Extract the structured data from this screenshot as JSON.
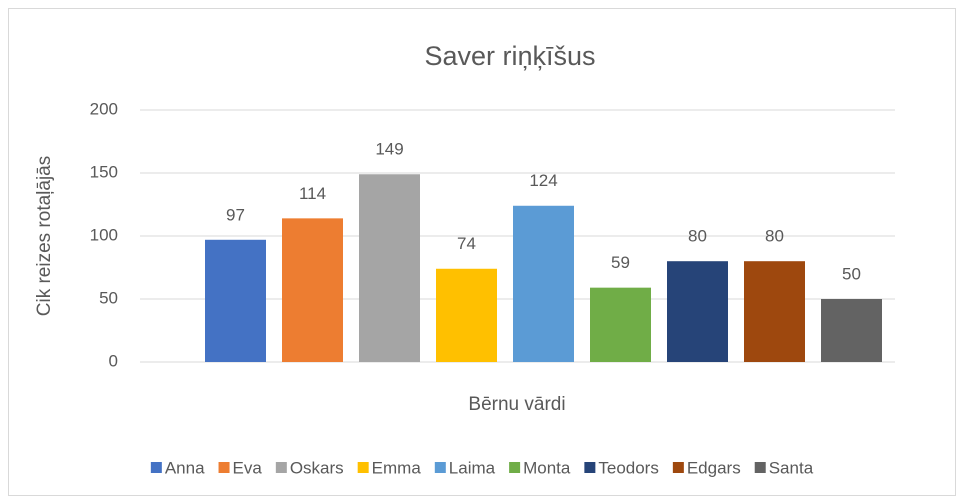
{
  "chart_data": {
    "type": "bar",
    "title": "Saver riņķīšus",
    "x_label": "Bērnu vārdi",
    "y_label": "Cik reizes rotaļājās",
    "ylim": [
      0,
      200
    ],
    "yticks": [
      0,
      50,
      100,
      150,
      200
    ],
    "grid": true,
    "legend": "bottom",
    "series": [
      {
        "name": "Anna",
        "color": "#4472c4",
        "values": [
          97
        ]
      },
      {
        "name": "Eva",
        "color": "#ed7d31",
        "values": [
          114
        ]
      },
      {
        "name": "Oskars",
        "color": "#a5a5a5",
        "values": [
          149
        ]
      },
      {
        "name": "Emma",
        "color": "#ffc000",
        "values": [
          74
        ]
      },
      {
        "name": "Laima",
        "color": "#5b9bd5",
        "values": [
          124
        ]
      },
      {
        "name": "Monta",
        "color": "#70ad47",
        "values": [
          59
        ]
      },
      {
        "name": "Teodors",
        "color": "#264478",
        "values": [
          80
        ]
      },
      {
        "name": "Edgars",
        "color": "#9e480e",
        "values": [
          80
        ]
      },
      {
        "name": "Santa",
        "color": "#636363",
        "values": [
          50
        ]
      }
    ]
  }
}
